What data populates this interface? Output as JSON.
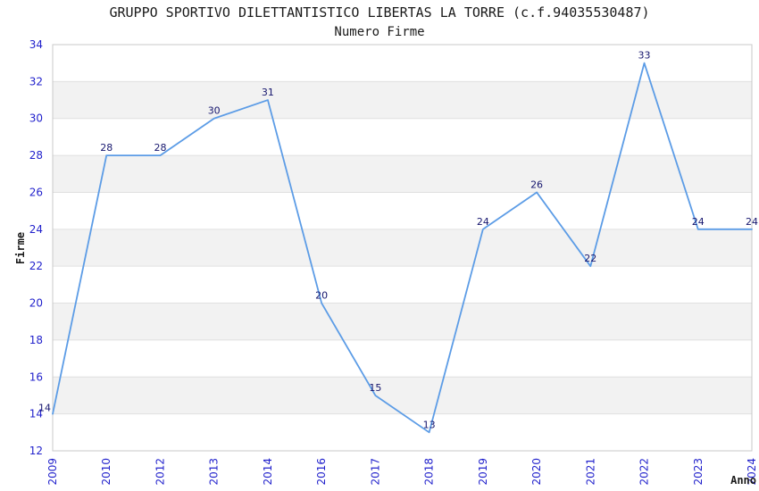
{
  "chart_data": {
    "type": "line",
    "title": "GRUPPO SPORTIVO DILETTANTISTICO LIBERTAS LA TORRE (c.f.94035530487)",
    "subtitle": "Numero Firme",
    "xlabel": "Anno",
    "ylabel": "Firme",
    "categories": [
      "2009",
      "2010",
      "2012",
      "2013",
      "2014",
      "2016",
      "2017",
      "2018",
      "2019",
      "2020",
      "2021",
      "2022",
      "2023",
      "2024"
    ],
    "values": [
      14,
      28,
      28,
      30,
      31,
      20,
      15,
      13,
      24,
      26,
      22,
      33,
      24,
      24
    ],
    "ylim": [
      12,
      34
    ],
    "y_ticks": [
      12,
      14,
      16,
      18,
      20,
      22,
      24,
      26,
      28,
      30,
      32,
      34
    ],
    "grid": "horizontal",
    "legend": "none",
    "point_labels_visible": true,
    "x_tick_rotation": -90,
    "colors": {
      "line": "#5c9ce6",
      "tick_label": "#2222cc",
      "data_label": "#16166e",
      "band": "#f2f2f2",
      "gridline": "#e0e0e0",
      "border": "#c8c8c8",
      "title": "#1a1a1a"
    }
  }
}
